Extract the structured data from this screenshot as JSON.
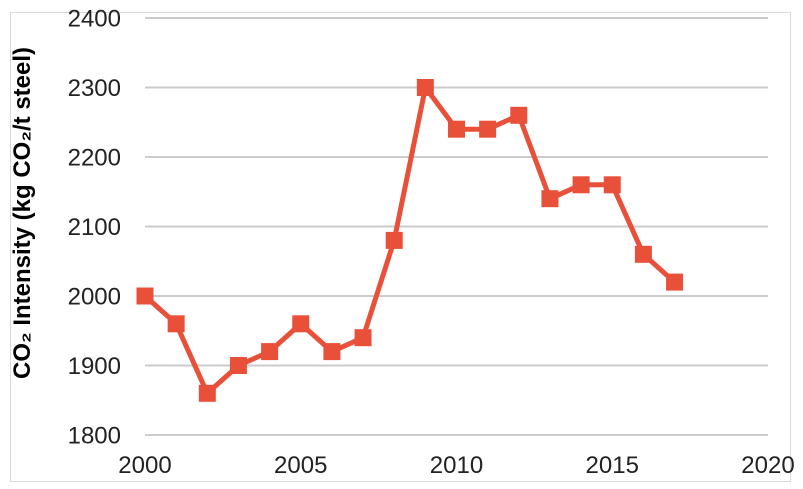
{
  "chart_data": {
    "type": "line",
    "title": "",
    "xlabel": "",
    "ylabel": "CO₂ Intensity (kg CO₂/t steel)",
    "x": [
      2000,
      2001,
      2002,
      2003,
      2004,
      2005,
      2006,
      2007,
      2008,
      2009,
      2010,
      2011,
      2012,
      2013,
      2014,
      2015,
      2016,
      2017
    ],
    "series": [
      {
        "name": "CO2 intensity",
        "values": [
          2000,
          1960,
          1860,
          1900,
          1920,
          1960,
          1920,
          1940,
          2080,
          2300,
          2240,
          2240,
          2260,
          2140,
          2160,
          2160,
          2060,
          2020
        ],
        "color": "#E8503A",
        "marker": "square"
      }
    ],
    "xlim": [
      2000,
      2020
    ],
    "ylim": [
      1800,
      2400
    ],
    "x_ticks": [
      2000,
      2005,
      2010,
      2015,
      2020
    ],
    "y_ticks": [
      1800,
      1900,
      2000,
      2100,
      2200,
      2300,
      2400
    ],
    "grid": "horizontal-only",
    "legend": "none"
  },
  "colors": {
    "accent": "#E8503A",
    "gridline": "#CBCBCB",
    "chart_border": "#D9D9D9",
    "tick_text": "#222222",
    "axis_title_text": "#000000",
    "background": "#FFFFFF"
  }
}
